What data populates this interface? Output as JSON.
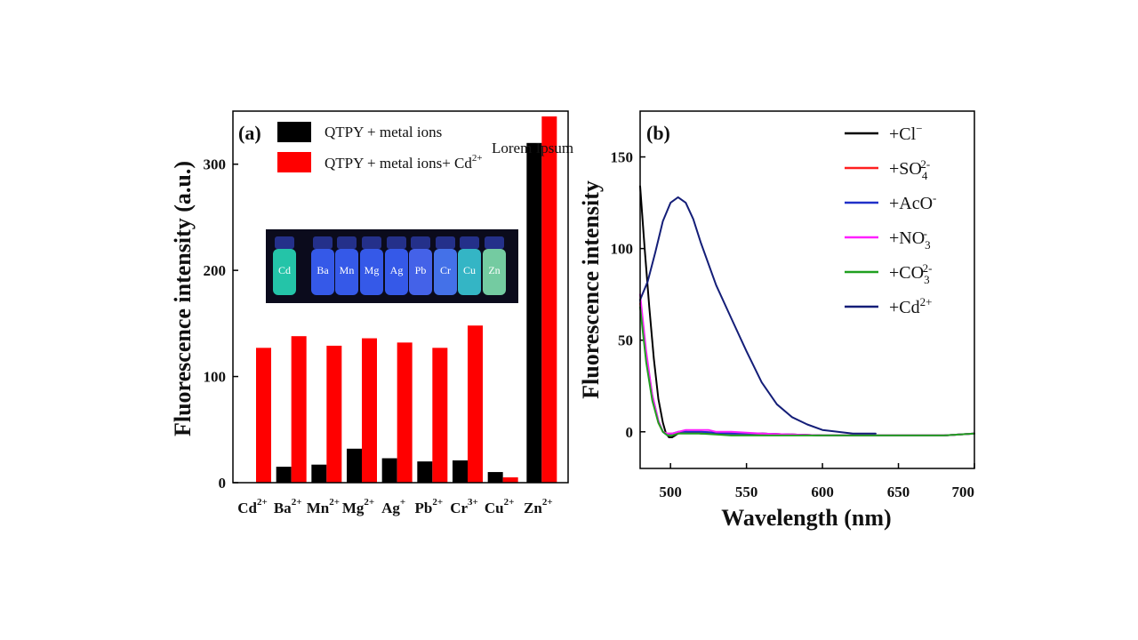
{
  "chart_data": [
    {
      "type": "bar",
      "panel": "(a)",
      "ylabel": "Fluorescence intensity (a.u.)",
      "ylim": [
        0,
        350
      ],
      "yticks": [
        0,
        100,
        200,
        300
      ],
      "categories": [
        {
          "base": "Cd",
          "sup": "2+"
        },
        {
          "base": "Ba",
          "sup": "2+"
        },
        {
          "base": "Mn",
          "sup": "2+"
        },
        {
          "base": "Mg",
          "sup": "2+"
        },
        {
          "base": "Ag",
          "sup": "+"
        },
        {
          "base": "Pb",
          "sup": "2+"
        },
        {
          "base": "Cr",
          "sup": "3+"
        },
        {
          "base": "Cu",
          "sup": "2+"
        },
        {
          "base": "Zn",
          "sup": "2+"
        }
      ],
      "series": [
        {
          "name": "QTPY + metal ions",
          "color": "#000000",
          "values": [
            0,
            15,
            17,
            32,
            23,
            20,
            21,
            10,
            320
          ]
        },
        {
          "name": "QTPY + metal ions+ Cd",
          "name_sup": "2+",
          "color": "#ff0000",
          "values": [
            127,
            138,
            129,
            136,
            132,
            127,
            148,
            5,
            345
          ]
        }
      ],
      "annotation": "Lorem Ipsum",
      "inset": {
        "vials": [
          "Cd",
          "Ba",
          "Mn",
          "Mg",
          "Ag",
          "Pb",
          "Cr",
          "Cu",
          "Zn"
        ],
        "vial_colors": [
          "#27d8b8",
          "#3a62ff",
          "#3a62ff",
          "#3a62ff",
          "#3a62ff",
          "#4a6cff",
          "#4a7cff",
          "#39c8d8",
          "#7fe0b0"
        ]
      },
      "grid": false,
      "legend": "top"
    },
    {
      "type": "line",
      "panel": "(b)",
      "xlabel": "Wavelength (nm)",
      "ylabel": "Fluorescence intensity",
      "xlim": [
        480,
        700
      ],
      "ylim": [
        -20,
        175
      ],
      "xticks": [
        500,
        550,
        600,
        650,
        700
      ],
      "yticks": [
        0,
        50,
        100,
        150
      ],
      "grid": false,
      "legend": "top-right",
      "series": [
        {
          "name": "+Cl",
          "name_sup": "−",
          "color": "#000000",
          "x": [
            480,
            483,
            486,
            489,
            492,
            495,
            497,
            499,
            501,
            503,
            505,
            510,
            520,
            540,
            560,
            600,
            640,
            680,
            700
          ],
          "y": [
            134,
            100,
            68,
            40,
            18,
            5,
            -1,
            -3,
            -3,
            -2,
            -1,
            0,
            -1,
            -1,
            -1,
            -2,
            -2,
            -2,
            -1
          ]
        },
        {
          "name": "+SO",
          "name_sub": "4",
          "name_sup": "2-",
          "color": "#ff2020",
          "x": [
            480,
            484,
            488,
            492,
            495,
            498,
            501,
            505,
            510,
            520,
            540,
            560,
            600,
            640,
            680,
            700
          ],
          "y": [
            70,
            40,
            18,
            5,
            0,
            -1,
            -1,
            -1,
            0,
            0,
            -1,
            -1,
            -2,
            -2,
            -2,
            -1
          ]
        },
        {
          "name": "+AcO",
          "name_sup": "-",
          "color": "#2030c8",
          "x": [
            480,
            484,
            488,
            492,
            495,
            498,
            501,
            505,
            510,
            520,
            540,
            560,
            600,
            640,
            680,
            700
          ],
          "y": [
            72,
            42,
            20,
            6,
            0,
            -2,
            -1,
            0,
            0,
            0,
            -1,
            -1,
            -2,
            -2,
            -2,
            -1
          ]
        },
        {
          "name": "+NO",
          "name_sub": "3",
          "name_sup": "-",
          "color": "#ff20ff",
          "x": [
            480,
            484,
            488,
            492,
            495,
            498,
            501,
            505,
            510,
            515,
            520,
            525,
            530,
            540,
            560,
            600,
            640,
            680,
            700
          ],
          "y": [
            75,
            44,
            20,
            6,
            0,
            -1,
            -1,
            0,
            1,
            1,
            1,
            1,
            0,
            0,
            -1,
            -2,
            -2,
            -2,
            -1
          ]
        },
        {
          "name": "+CO",
          "name_sub": "3",
          "name_sup": "2-",
          "color": "#20a020",
          "x": [
            480,
            484,
            488,
            492,
            495,
            498,
            501,
            505,
            510,
            520,
            540,
            560,
            600,
            640,
            680,
            700
          ],
          "y": [
            68,
            38,
            17,
            5,
            0,
            -2,
            -2,
            -1,
            -1,
            -1,
            -2,
            -2,
            -2,
            -2,
            -2,
            -1
          ]
        },
        {
          "name": "+Cd",
          "name_sup": "2+",
          "color": "#141e78",
          "x": [
            480,
            485,
            490,
            495,
            500,
            505,
            510,
            515,
            520,
            530,
            540,
            550,
            560,
            570,
            580,
            590,
            600,
            610,
            620,
            630,
            635
          ],
          "y": [
            72,
            82,
            98,
            115,
            125,
            128,
            125,
            116,
            103,
            80,
            62,
            44,
            27,
            15,
            8,
            4,
            1,
            0,
            -1,
            -1,
            -1
          ]
        }
      ]
    }
  ]
}
